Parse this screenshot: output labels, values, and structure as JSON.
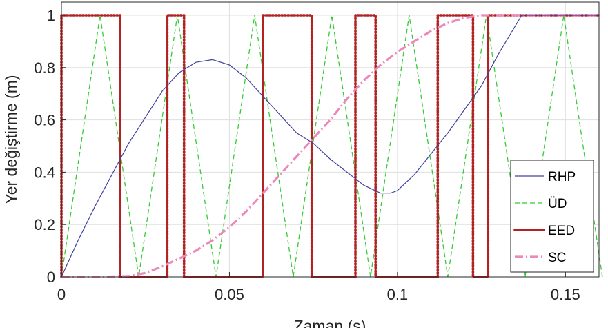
{
  "chart_data": {
    "type": "line",
    "xlabel": "Zaman (s)",
    "ylabel": "Yer değiştirme (m)",
    "xlim": [
      0,
      0.16
    ],
    "ylim": [
      0,
      1.05
    ],
    "xticks": [
      0,
      0.05,
      0.1,
      0.15
    ],
    "xtick_labels": [
      "0",
      "0.05",
      "0.1",
      "0.15"
    ],
    "yticks": [
      0,
      0.2,
      0.4,
      0.6,
      0.8,
      1
    ],
    "ytick_labels": [
      "0",
      "0.2",
      "0.4",
      "0.6",
      "0.8",
      "1"
    ],
    "grid": true,
    "legend_position": "bottom-right",
    "series": [
      {
        "name": "RHP",
        "color": "#4040a0",
        "style": "solid",
        "x": [
          0,
          0.005,
          0.01,
          0.015,
          0.02,
          0.025,
          0.03,
          0.035,
          0.04,
          0.045,
          0.05,
          0.055,
          0.06,
          0.065,
          0.07,
          0.075,
          0.08,
          0.085,
          0.09,
          0.095,
          0.098,
          0.1,
          0.105,
          0.11,
          0.115,
          0.12,
          0.125,
          0.13,
          0.137,
          0.16
        ],
        "y": [
          0,
          0.14,
          0.27,
          0.39,
          0.51,
          0.61,
          0.71,
          0.78,
          0.82,
          0.83,
          0.81,
          0.76,
          0.69,
          0.62,
          0.55,
          0.51,
          0.45,
          0.4,
          0.35,
          0.32,
          0.32,
          0.33,
          0.39,
          0.47,
          0.55,
          0.64,
          0.73,
          0.85,
          1,
          1
        ]
      },
      {
        "name": "ÜD",
        "color": "#33cc33",
        "style": "dashed",
        "x": [
          0,
          0.0115,
          0.023,
          0.0345,
          0.046,
          0.0575,
          0.069,
          0.0805,
          0.092,
          0.1035,
          0.115,
          0.1265,
          0.138,
          0.1495,
          0.161
        ],
        "y": [
          0,
          1,
          0,
          1,
          0,
          1,
          0,
          1,
          0,
          1,
          0,
          1,
          0,
          1,
          0
        ]
      },
      {
        "name": "EED",
        "color": "#b22222",
        "style": "dotted",
        "x": [
          0,
          0,
          0.0175,
          0.0175,
          0.0315,
          0.0315,
          0.0365,
          0.0365,
          0.06,
          0.06,
          0.0745,
          0.0745,
          0.0875,
          0.0875,
          0.0935,
          0.0935,
          0.112,
          0.112,
          0.1225,
          0.1225,
          0.127,
          0.127,
          0.16
        ],
        "y": [
          0,
          1,
          1,
          0,
          0,
          1,
          1,
          0,
          0,
          1,
          1,
          0,
          0,
          1,
          1,
          0,
          0,
          1,
          1,
          0,
          0,
          1,
          1
        ]
      },
      {
        "name": "SC",
        "color": "#ee88bb",
        "style": "dashdot",
        "x": [
          0,
          0.01,
          0.02,
          0.025,
          0.03,
          0.035,
          0.04,
          0.045,
          0.05,
          0.055,
          0.06,
          0.065,
          0.07,
          0.075,
          0.08,
          0.085,
          0.09,
          0.095,
          0.1,
          0.105,
          0.11,
          0.115,
          0.12,
          0.125,
          0.13,
          0.16
        ],
        "y": [
          0,
          0,
          0.003,
          0.015,
          0.04,
          0.07,
          0.1,
          0.14,
          0.19,
          0.25,
          0.32,
          0.39,
          0.46,
          0.53,
          0.6,
          0.68,
          0.75,
          0.81,
          0.86,
          0.9,
          0.94,
          0.97,
          0.99,
          1,
          1,
          1
        ]
      }
    ]
  }
}
